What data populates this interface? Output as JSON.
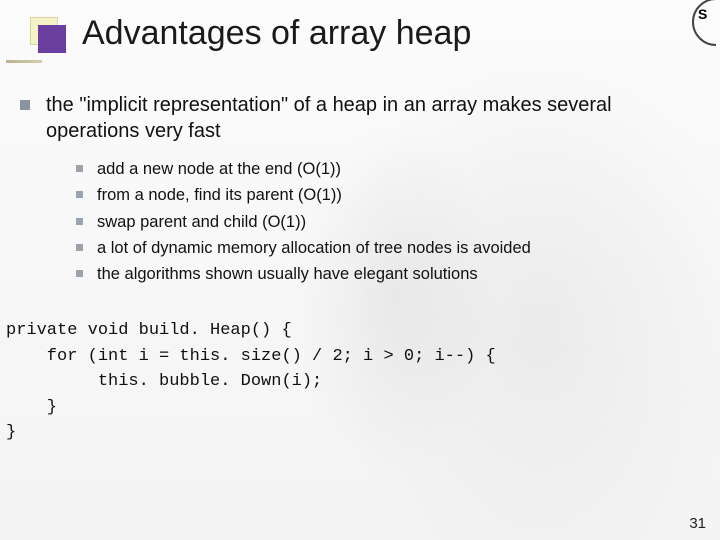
{
  "colors": {
    "background": "#ffffff",
    "title_text": "#1a1a1a",
    "body_text": "#111111",
    "bullet_lvl1": "#8a93a0",
    "bullet_lvl2": "#9aa2ad",
    "accent_square_back": "#f5f2c8",
    "accent_square_front": "#6a3fa0",
    "rule": "#c8c0a0"
  },
  "typography": {
    "title_fontsize_pt": 26,
    "lvl1_fontsize_pt": 15,
    "lvl2_fontsize_pt": 12,
    "code_fontsize_pt": 13,
    "code_family": "Courier New"
  },
  "title": "Advantages of array heap",
  "main_point": "the \"implicit representation\" of a heap in an array makes several operations very fast",
  "sub_points": [
    "add a new node at the end (O(1))",
    "from a node, find its parent (O(1))",
    "swap parent and child (O(1))",
    "a lot of dynamic memory allocation of tree nodes is avoided",
    "the algorithms shown usually have elegant solutions"
  ],
  "code_lines": [
    "private void build. Heap() {",
    "    for (int i = this. size() / 2; i > 0; i--) {",
    "         this. bubble. Down(i);",
    "    }",
    "}"
  ],
  "page_number": "31",
  "logo_letter": "S"
}
